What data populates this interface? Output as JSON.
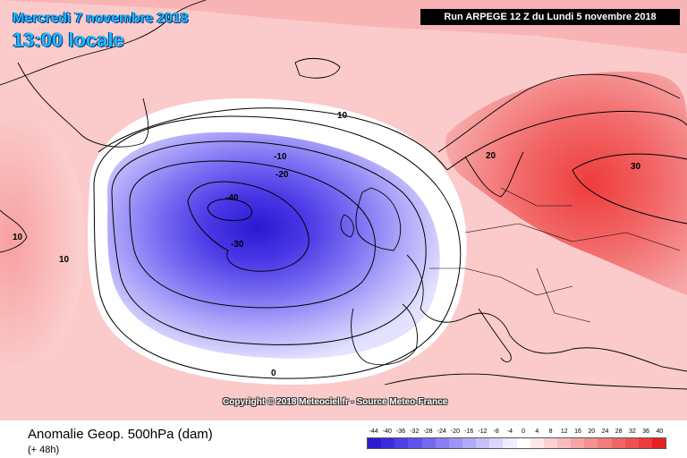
{
  "header": {
    "date": "Mercredi 7 novembre 2018",
    "time": "13:00 locale",
    "run": "Run ARPEGE 12 Z du Lundi 5 novembre 2018"
  },
  "copyright": "Copyright © 2018 Meteociel.fr - Source Meteo-France",
  "footer": {
    "title": "Anomalie Geop. 500hPa (dam)",
    "subtitle": "(+ 48h)"
  },
  "scale": {
    "labels": [
      "-44",
      "-40",
      "-36",
      "-32",
      "-28",
      "-24",
      "-20",
      "-16",
      "-12",
      "-8",
      "-4",
      "0",
      "4",
      "8",
      "12",
      "16",
      "20",
      "24",
      "28",
      "32",
      "36",
      "40"
    ],
    "colors": [
      "#2b1bd4",
      "#3a2ce0",
      "#4d3fe8",
      "#6152ef",
      "#7568f3",
      "#897ef6",
      "#9e95f8",
      "#b2abfa",
      "#c6c1fc",
      "#dad6fd",
      "#eeecfe",
      "#ffffff",
      "#fde7e7",
      "#fbd1d1",
      "#f9bcbc",
      "#f7a6a6",
      "#f59191",
      "#f37b7b",
      "#f16565",
      "#ef5050",
      "#ed3a3a",
      "#e92020"
    ]
  },
  "contour_labels": [
    "10",
    "10",
    "10",
    "-10",
    "-20",
    "-40",
    "-30",
    "0",
    "20",
    "30"
  ]
}
